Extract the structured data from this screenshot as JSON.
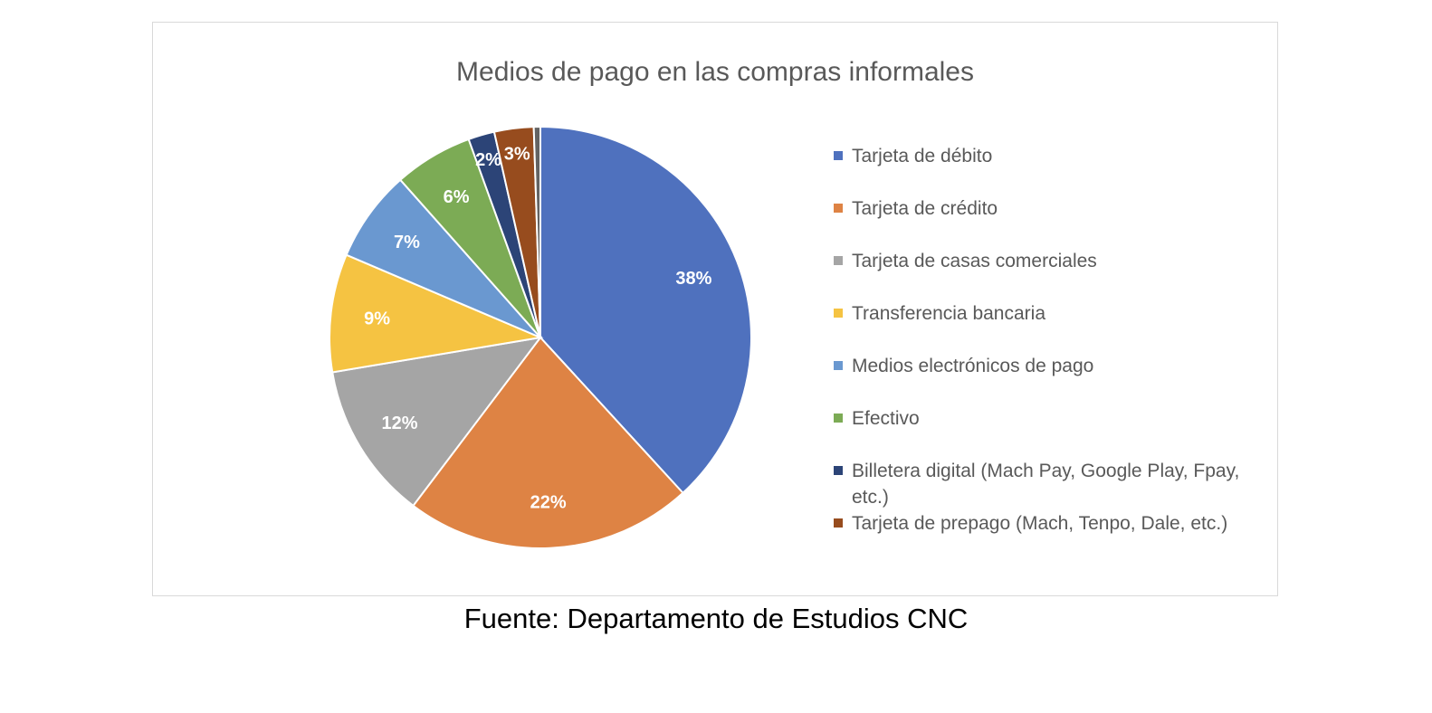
{
  "chart_data": {
    "type": "pie",
    "title": "Medios de pago en las compras informales",
    "slices": [
      {
        "label": "Tarjeta de débito",
        "value": 38,
        "display": "38%",
        "color": "#4f71be"
      },
      {
        "label": "Tarjeta de crédito",
        "value": 22,
        "display": "22%",
        "color": "#de8344"
      },
      {
        "label": "Tarjeta de casas comerciales",
        "value": 12,
        "display": "12%",
        "color": "#a5a5a5"
      },
      {
        "label": "Transferencia bancaria",
        "value": 9,
        "display": "9%",
        "color": "#f5c342"
      },
      {
        "label": "Medios electrónicos de pago",
        "value": 7,
        "display": "7%",
        "color": "#6a98d0"
      },
      {
        "label": "Efectivo",
        "value": 6,
        "display": "6%",
        "color": "#7cab55"
      },
      {
        "label": "Billetera digital (Mach Pay, Google Play, Fpay, etc.)",
        "value": 2,
        "display": "2%",
        "color": "#2c4477"
      },
      {
        "label": "Tarjeta de prepago (Mach, Tenpo, Dale, etc.)",
        "value": 3,
        "display": "3%",
        "color": "#974c1e"
      },
      {
        "label": "",
        "value": 0.5,
        "display": "",
        "color": "#636363"
      }
    ],
    "legend_position": "right"
  },
  "source": "Fuente: Departamento de Estudios CNC"
}
